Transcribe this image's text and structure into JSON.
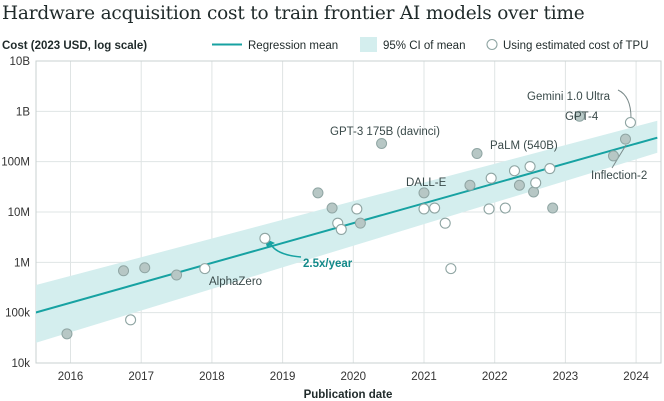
{
  "title": "Hardware acquisition cost to train frontier AI models over time",
  "chart_data": {
    "type": "scatter",
    "title": "Hardware acquisition cost to train frontier AI models over time",
    "ylabel": "Cost (2023 USD, log scale)",
    "xlabel": "Publication date",
    "yscale": "log",
    "xlim": [
      2015.5,
      2024.3
    ],
    "ylim": [
      10000,
      10000000000
    ],
    "x_ticks": [
      "2016",
      "2017",
      "2018",
      "2019",
      "2020",
      "2021",
      "2022",
      "2023",
      "2024"
    ],
    "y_ticks": [
      {
        "value": 10000,
        "label": "10k"
      },
      {
        "value": 100000,
        "label": "100k"
      },
      {
        "value": 1000000,
        "label": "1M"
      },
      {
        "value": 10000000,
        "label": "10M"
      },
      {
        "value": 100000000,
        "label": "100M"
      },
      {
        "value": 1000000000,
        "label": "1B"
      },
      {
        "value": 10000000000,
        "label": "10B"
      }
    ],
    "grid": true,
    "legend": {
      "placement": "top",
      "entries": [
        "Regression mean",
        "95% CI of mean",
        "Using estimated cost of TPU"
      ]
    },
    "regression": {
      "label": "Regression mean",
      "x": [
        2015.5,
        2024.3
      ],
      "y": [
        100000,
        300000000
      ],
      "ci_label": "95% CI of mean",
      "ci_lower": [
        25000,
        150000000
      ],
      "ci_upper": [
        350000,
        650000000
      ]
    },
    "slope_annotation": "2.5x/year",
    "points_gpu": [
      {
        "x": 2015.95,
        "y": 38000
      },
      {
        "x": 2016.75,
        "y": 680000
      },
      {
        "x": 2017.05,
        "y": 780000
      },
      {
        "x": 2017.5,
        "y": 560000
      },
      {
        "x": 2019.5,
        "y": 24000000
      },
      {
        "x": 2019.7,
        "y": 12000000
      },
      {
        "x": 2020.1,
        "y": 6000000
      },
      {
        "x": 2020.4,
        "y": 230000000
      },
      {
        "x": 2021.0,
        "y": 24000000
      },
      {
        "x": 2021.65,
        "y": 34000000
      },
      {
        "x": 2021.75,
        "y": 145000000
      },
      {
        "x": 2022.35,
        "y": 34000000
      },
      {
        "x": 2022.55,
        "y": 25000000
      },
      {
        "x": 2022.82,
        "y": 12000000
      },
      {
        "x": 2023.2,
        "y": 800000000
      },
      {
        "x": 2023.68,
        "y": 130000000
      },
      {
        "x": 2023.85,
        "y": 280000000
      }
    ],
    "points_tpu": [
      {
        "x": 2016.85,
        "y": 72000
      },
      {
        "x": 2017.9,
        "y": 750000
      },
      {
        "x": 2018.75,
        "y": 3000000
      },
      {
        "x": 2019.78,
        "y": 6000000
      },
      {
        "x": 2019.83,
        "y": 4500000
      },
      {
        "x": 2020.05,
        "y": 11500000
      },
      {
        "x": 2021.0,
        "y": 11500000
      },
      {
        "x": 2021.15,
        "y": 12000000
      },
      {
        "x": 2021.3,
        "y": 6000000
      },
      {
        "x": 2021.38,
        "y": 750000
      },
      {
        "x": 2021.92,
        "y": 11500000
      },
      {
        "x": 2021.95,
        "y": 47000000
      },
      {
        "x": 2022.15,
        "y": 12000000
      },
      {
        "x": 2022.28,
        "y": 66000000
      },
      {
        "x": 2022.5,
        "y": 80000000
      },
      {
        "x": 2022.58,
        "y": 38000000
      },
      {
        "x": 2022.78,
        "y": 73000000
      },
      {
        "x": 2023.92,
        "y": 600000000
      }
    ],
    "annotations": [
      {
        "text": "AlphaZero"
      },
      {
        "text": "GPT-3 175B (davinci)"
      },
      {
        "text": "DALL-E"
      },
      {
        "text": "PaLM (540B)"
      },
      {
        "text": "GPT-4"
      },
      {
        "text": "Gemini 1.0 Ultra"
      },
      {
        "text": "Inflection-2"
      }
    ]
  },
  "colors": {
    "accent": "#17a2a2",
    "ci_band": "#d4eeee",
    "gpu_fill": "#b7c7c5",
    "gpu_stroke": "#8fa5a3",
    "tpu_stroke": "#8fa5a3",
    "grid": "#dfe4e4"
  }
}
